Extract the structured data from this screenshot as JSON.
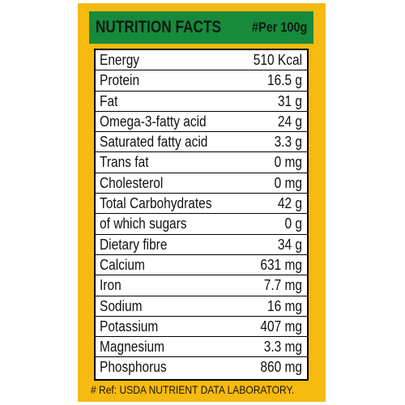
{
  "header": {
    "title": "NUTRITION FACTS",
    "basis": "#Per 100g"
  },
  "nutrients": [
    {
      "name": "Energy",
      "amount": "510 Kcal"
    },
    {
      "name": "Protein",
      "amount": "16.5 g"
    },
    {
      "name": "Fat",
      "amount": "31 g"
    },
    {
      "name": "Omega-3-fatty acid",
      "amount": "24 g"
    },
    {
      "name": "Saturated fatty acid",
      "amount": "3.3 g"
    },
    {
      "name": "Trans fat",
      "amount": "0 mg"
    },
    {
      "name": "Cholesterol",
      "amount": "0 mg"
    },
    {
      "name": "Total Carbohydrates",
      "amount": "42 g"
    },
    {
      "name": "of which sugars",
      "amount": "0 g"
    },
    {
      "name": "Dietary fibre",
      "amount": "34 g"
    },
    {
      "name": "Calcium",
      "amount": "631 mg"
    },
    {
      "name": "Iron",
      "amount": "7.7 mg"
    },
    {
      "name": "Sodium",
      "amount": "16 mg"
    },
    {
      "name": "Potassium",
      "amount": "407 mg"
    },
    {
      "name": "Magnesium",
      "amount": "3.3 mg"
    },
    {
      "name": "Phosphorus",
      "amount": "860 mg"
    }
  ],
  "footer": {
    "reference": "# Ref: USDA NUTRIENT DATA LABORATORY."
  },
  "colors": {
    "panel": "#F6BA10",
    "header": "#178A3C",
    "table_background": "#FFFFFF"
  }
}
